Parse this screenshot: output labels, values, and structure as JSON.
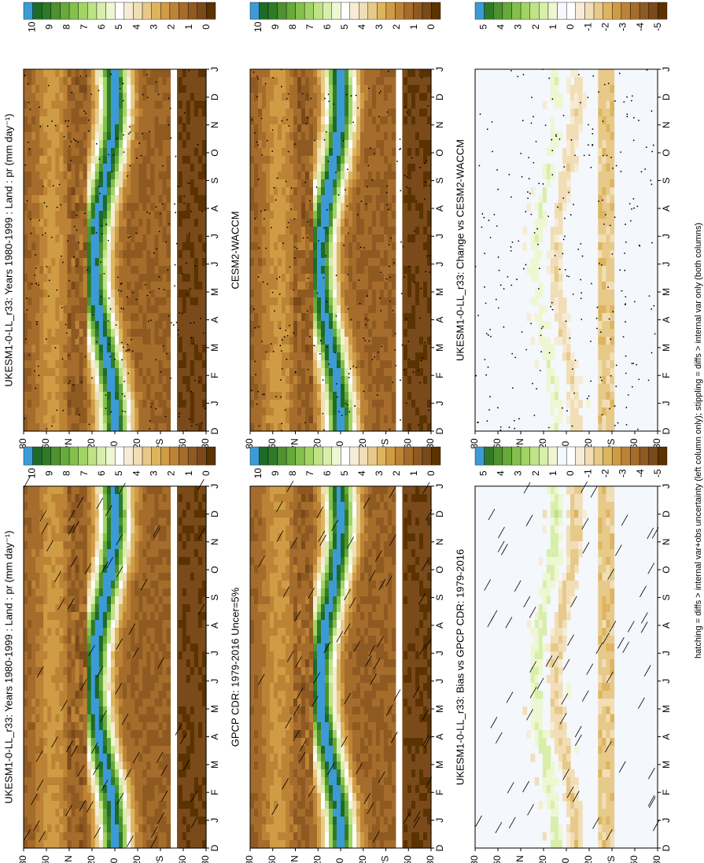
{
  "footnote": "hatching = diffs > internal var+obs uncertainty (left column only); stippling = diffs > internal var only (both columns)",
  "colors": {
    "abs_scale": [
      "#5b3300",
      "#7a4a1a",
      "#8f5a22",
      "#a56c2b",
      "#bc8336",
      "#cf9c45",
      "#ddb55e",
      "#e7c98a",
      "#f1deb6",
      "#f6ecd6",
      "#ffffff",
      "#eef7d2",
      "#d8efac",
      "#bfe386",
      "#a2d465",
      "#84c04b",
      "#67a93b",
      "#4e912f",
      "#2f7a28",
      "#1e6a27",
      "#3c9bd6"
    ],
    "diff_scale": [
      "#5b3300",
      "#7a4a1a",
      "#8f5a22",
      "#a56c2b",
      "#bc8336",
      "#cf9c45",
      "#ddb55e",
      "#e7c98a",
      "#f1deb6",
      "#f6ecd6",
      "#ffffff",
      "#f4f7fb",
      "#eef7d2",
      "#d8efac",
      "#bfe386",
      "#a2d465",
      "#84c04b",
      "#67a93b",
      "#4e912f",
      "#2f7a28",
      "#3c9bd6"
    ],
    "background_diff": "#f4f7fb"
  },
  "chart_data": [
    {
      "type": "heatmap",
      "title": "UKESM1-0-LL_r33: Years 1980-1999 : Land : pr (mm day⁻¹)",
      "panel": "row1-left",
      "x_ticks": [
        "D",
        "J",
        "F",
        "M",
        "A",
        "M",
        "J",
        "J",
        "A",
        "S",
        "O",
        "N",
        "D",
        "J"
      ],
      "y_ticks": [
        "80",
        "60",
        "°N",
        "20",
        "0",
        "20",
        "°S",
        "60",
        "80"
      ],
      "colorbar_ticks": [
        "10",
        "9",
        "8",
        "7",
        "6",
        "5",
        "4",
        "3",
        "2",
        "1",
        "0"
      ],
      "overlay": "hatching"
    },
    {
      "type": "heatmap",
      "title": "UKESM1-0-LL_r33: Years 1980-1999 : Land : pr (mm day⁻¹)",
      "panel": "row1-right",
      "x_ticks": [
        "D",
        "J",
        "F",
        "M",
        "A",
        "M",
        "J",
        "J",
        "A",
        "S",
        "O",
        "N",
        "D",
        "J"
      ],
      "y_ticks": [
        "80",
        "60",
        "°N",
        "20",
        "0",
        "20",
        "°S",
        "60",
        "80"
      ],
      "colorbar_ticks": [
        "10",
        "9",
        "8",
        "7",
        "6",
        "5",
        "4",
        "3",
        "2",
        "1",
        "0"
      ],
      "overlay": "stippling"
    },
    {
      "type": "heatmap",
      "title": "GPCP CDR: 1979-2016 Uncer=5%",
      "panel": "row2-left",
      "x_ticks": [
        "D",
        "J",
        "F",
        "M",
        "A",
        "M",
        "J",
        "J",
        "A",
        "S",
        "O",
        "N",
        "D",
        "J"
      ],
      "y_ticks": [
        "80",
        "60",
        "°N",
        "20",
        "0",
        "20",
        "°S",
        "60",
        "80"
      ],
      "colorbar_ticks": [
        "10",
        "9",
        "8",
        "7",
        "6",
        "5",
        "4",
        "3",
        "2",
        "1",
        "0"
      ],
      "overlay": "hatching"
    },
    {
      "type": "heatmap",
      "title": "CESM2-WACCM",
      "panel": "row2-right",
      "x_ticks": [
        "D",
        "J",
        "F",
        "M",
        "A",
        "M",
        "J",
        "J",
        "A",
        "S",
        "O",
        "N",
        "D",
        "J"
      ],
      "y_ticks": [
        "80",
        "60",
        "°N",
        "20",
        "0",
        "20",
        "°S",
        "60",
        "80"
      ],
      "colorbar_ticks": [
        "10",
        "9",
        "8",
        "7",
        "6",
        "5",
        "4",
        "3",
        "2",
        "1",
        "0"
      ],
      "overlay": "stippling"
    },
    {
      "type": "heatmap",
      "title": "UKESM1-0-LL_r33: Bias vs GPCP CDR: 1979-2016",
      "panel": "row3-left",
      "x_ticks": [
        "D",
        "J",
        "F",
        "M",
        "A",
        "M",
        "J",
        "J",
        "A",
        "S",
        "O",
        "N",
        "D",
        "J"
      ],
      "y_ticks": [
        "80",
        "60",
        "°N",
        "20",
        "0",
        "20",
        "°S",
        "60",
        "80"
      ],
      "colorbar_ticks": [
        "5",
        "4",
        "3",
        "2",
        "1",
        "0",
        "-1",
        "-2",
        "-3",
        "-4",
        "-5"
      ],
      "overlay": "hatching"
    },
    {
      "type": "heatmap",
      "title": "UKESM1-0-LL_r33: Change vs CESM2-WACCM",
      "panel": "row3-right",
      "x_ticks": [
        "D",
        "J",
        "F",
        "M",
        "A",
        "M",
        "J",
        "J",
        "A",
        "S",
        "O",
        "N",
        "D",
        "J"
      ],
      "y_ticks": [
        "80",
        "60",
        "°N",
        "20",
        "0",
        "20",
        "°S",
        "60",
        "80"
      ],
      "colorbar_ticks": [
        "5",
        "4",
        "3",
        "2",
        "1",
        "0",
        "-1",
        "-2",
        "-3",
        "-4",
        "-5"
      ],
      "overlay": "stippling"
    }
  ]
}
